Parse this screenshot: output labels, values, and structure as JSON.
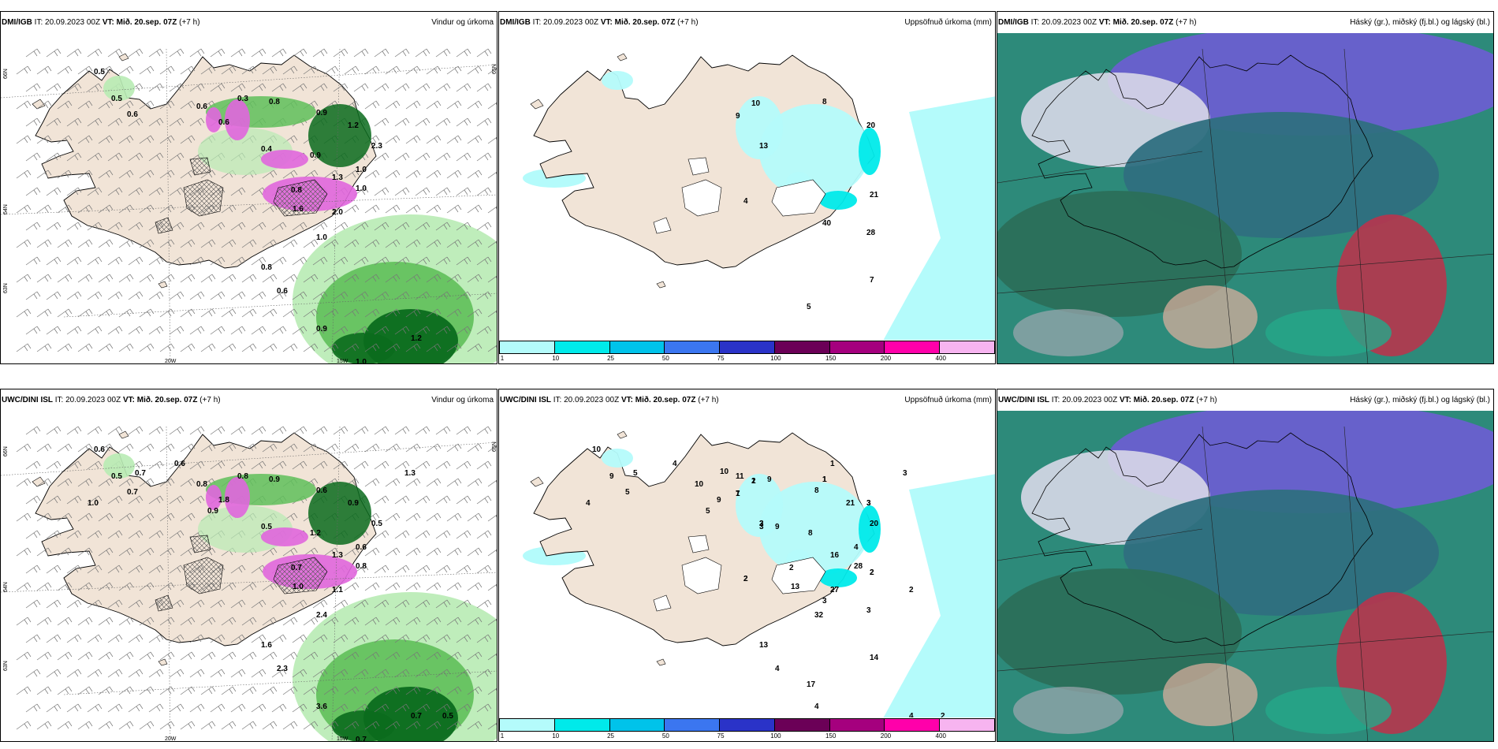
{
  "panels": [
    {
      "id": "p1",
      "model": "DMI/IGB",
      "it_label": "IT:",
      "it": "20.09.2023 00Z",
      "vt_label": "VT:",
      "vt": "Mið. 20.sep. 07Z",
      "lead": "(+7 h)",
      "title": "Vindur og úrkoma",
      "type": "wind",
      "labels": [
        "0.5",
        "0.5",
        "0.6",
        "0.6",
        "0.3",
        "0.8",
        "0.9",
        "1.2",
        "2.3",
        "1.0",
        "1.3",
        "0.4",
        "0.9",
        "0.8",
        "0.6",
        "1.6",
        "2.0",
        "1.0",
        "1.0",
        "0.8",
        "0.6",
        "0.9",
        "1.0",
        "1.2"
      ]
    },
    {
      "id": "p2",
      "model": "DMI/IGB",
      "it_label": "IT:",
      "it": "20.09.2023 00Z",
      "vt_label": "VT:",
      "vt": "Mið. 20.sep. 07Z",
      "lead": "(+7 h)",
      "title": "Uppsöfnuð úrkoma (mm)",
      "type": "accum",
      "labels": [
        "9",
        "10",
        "8",
        "13",
        "20",
        "4",
        "21",
        "40",
        "28",
        "7",
        "5"
      ]
    },
    {
      "id": "p3",
      "model": "DMI/IGB",
      "it_label": "IT:",
      "it": "20.09.2023 00Z",
      "vt_label": "VT:",
      "vt": "Mið. 20.sep. 07Z",
      "lead": "(+7 h)",
      "title": "Háský (gr.), miðský (fj.bl.) og lágský (bl.)",
      "type": "cloud",
      "labels": []
    },
    {
      "id": "p4",
      "model": "UWC/DINI ISL",
      "it_label": "IT:",
      "it": "20.09.2023 00Z",
      "vt_label": "VT:",
      "vt": "Mið. 20.sep. 07Z",
      "lead": "(+7 h)",
      "title": "Vindur og úrkoma",
      "type": "wind",
      "labels": [
        "0.6",
        "0.5",
        "0.7",
        "0.8",
        "0.8",
        "0.9",
        "0.6",
        "0.9",
        "0.5",
        "0.6",
        "1.3",
        "0.5",
        "1.2",
        "0.7",
        "1.8",
        "1.0",
        "1.1",
        "0.8",
        "2.4",
        "1.6",
        "2.3",
        "3.6",
        "0.7",
        "0.7",
        "1.0",
        "0.7",
        "0.6",
        "0.9",
        "1.3",
        "0.5"
      ]
    },
    {
      "id": "p5",
      "model": "UWC/DINI ISL",
      "it_label": "IT:",
      "it": "20.09.2023 00Z",
      "vt_label": "VT:",
      "vt": "Mið. 20.sep. 07Z",
      "lead": "(+7 h)",
      "title": "Uppsöfnuð úrkoma (mm)",
      "type": "accum",
      "labels": [
        "1",
        "1",
        "1",
        "2",
        "3",
        "2",
        "2",
        "3",
        "3",
        "14",
        "17",
        "9",
        "2",
        "1",
        "10",
        "10",
        "9",
        "5",
        "10",
        "11",
        "9",
        "8",
        "21",
        "20",
        "4",
        "16",
        "3",
        "8",
        "2",
        "9",
        "13",
        "27",
        "28",
        "32",
        "13",
        "4",
        "4",
        "3",
        "4",
        "4",
        "5",
        "4",
        "5",
        "3",
        "2",
        "7",
        "2",
        "1",
        "3",
        "3",
        "2",
        "2"
      ]
    },
    {
      "id": "p6",
      "model": "UWC/DINI ISL",
      "it_label": "IT:",
      "it": "20.09.2023 00Z",
      "vt_label": "VT:",
      "vt": "Mið. 20.sep. 07Z",
      "lead": "(+7 h)",
      "title": "Háský (gr.), miðský (fj.bl.) og lágský (bl.)",
      "type": "cloud",
      "labels": []
    }
  ],
  "colorbar": {
    "colors": [
      "#b4fbfb",
      "#00eaea",
      "#00c3ea",
      "#3b76f0",
      "#2a33c8",
      "#6b0057",
      "#a5007e",
      "#ff00aa",
      "#f7b4f0"
    ],
    "ticks": [
      "1",
      "10",
      "25",
      "50",
      "75",
      "100",
      "150",
      "200",
      "400"
    ]
  },
  "axis_labels": {
    "lat_n": "66N",
    "lat_s": "64N",
    "lat_ne": "65N",
    "lat_sw": "63N",
    "lon_w": "20W",
    "lon_e": "15W"
  },
  "colors": {
    "land": "#f1e4d7",
    "precip_light": "#b8ebb4",
    "precip_mid": "#5fbf5a",
    "precip_dark": "#0b6b1d",
    "precip_pink": "#e066dd",
    "accum_light": "#b4fbfb",
    "accum_mid": "#00eaea",
    "cloud_high": "#6a5fd0",
    "cloud_mid": "#2f6f80",
    "cloud_low": "#2d8a7a",
    "cloud_red": "#c0304a"
  }
}
